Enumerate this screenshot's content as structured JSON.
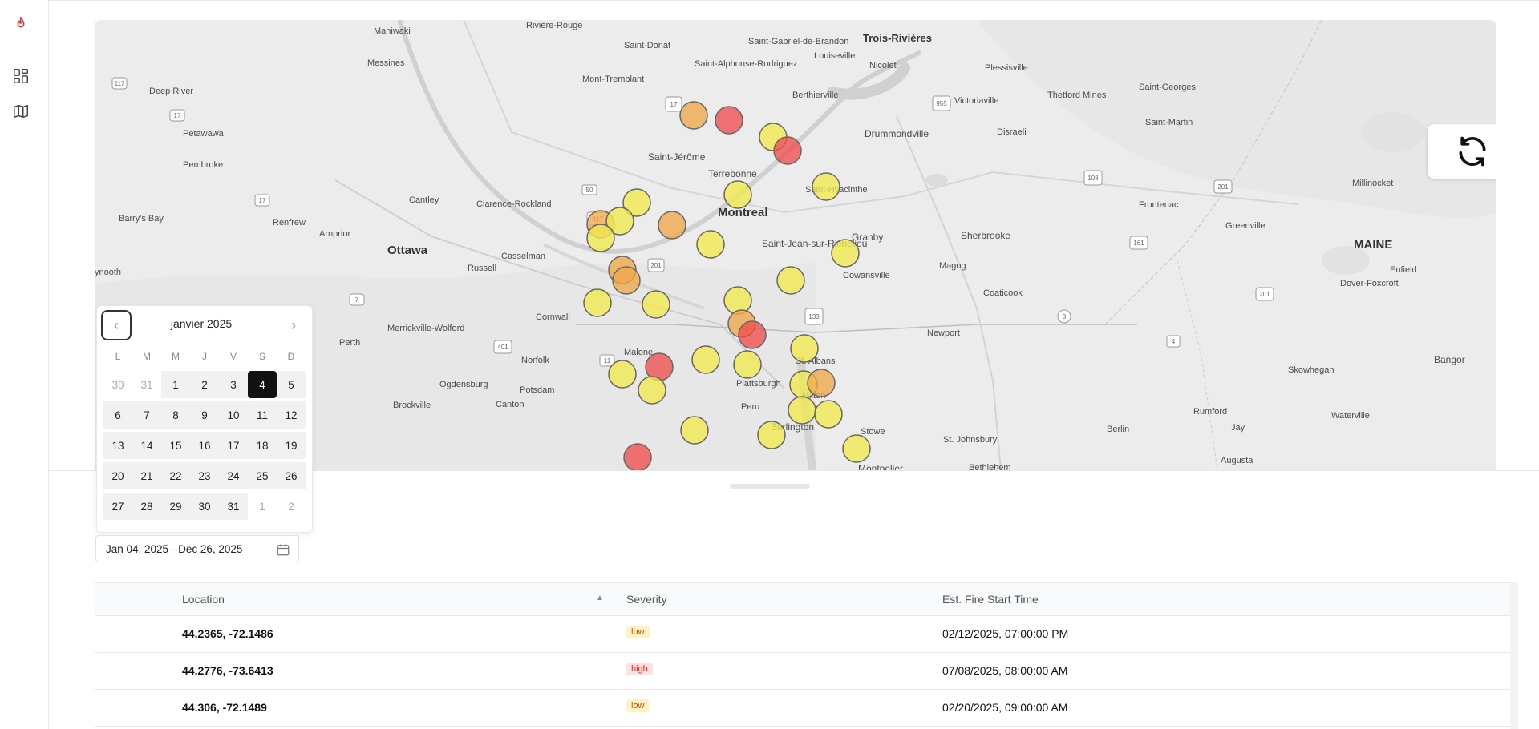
{
  "sidebar": {
    "items": [
      {
        "icon": "flame-icon"
      },
      {
        "icon": "dashboard-icon"
      },
      {
        "icon": "map-icon"
      }
    ]
  },
  "map": {
    "places": [
      {
        "label": "Rivière-Rouge"
      },
      {
        "label": "Saint-Donat"
      },
      {
        "label": "Saint-Gabriel-de-Brandon"
      },
      {
        "label": "Trois-Rivières"
      },
      {
        "label": "Maniwaki"
      },
      {
        "label": "Messines"
      },
      {
        "label": "Mont-Tremblant"
      },
      {
        "label": "Saint-Alphonse-Rodriguez"
      },
      {
        "label": "Louiseville"
      },
      {
        "label": "Nicolet"
      },
      {
        "label": "Plessisville"
      },
      {
        "label": "Deep River"
      },
      {
        "label": "Thetford Mines"
      },
      {
        "label": "Saint-Georges"
      },
      {
        "label": "Victoriaville"
      },
      {
        "label": "Berthierville"
      },
      {
        "label": "Petawawa"
      },
      {
        "label": "Drummondville"
      },
      {
        "label": "Disraeli"
      },
      {
        "label": "Saint-Martin"
      },
      {
        "label": "Pembroke"
      },
      {
        "label": "Saint-Jérôme"
      },
      {
        "label": "Terrebonne"
      },
      {
        "label": "Saint-Hyacinthe"
      },
      {
        "label": "Millinocket"
      },
      {
        "label": "Barry's Bay"
      },
      {
        "label": "Renfrew"
      },
      {
        "label": "Cantley"
      },
      {
        "label": "Clarence-Rockland"
      },
      {
        "label": "Montreal"
      },
      {
        "label": "Frontenac"
      },
      {
        "label": "Arnprior"
      },
      {
        "label": "Ottawa"
      },
      {
        "label": "Granby"
      },
      {
        "label": "Sherbrooke"
      },
      {
        "label": "Greenville"
      },
      {
        "label": "Saint-Jean-sur-Richelieu"
      },
      {
        "label": "Casselman"
      },
      {
        "label": "Russell"
      },
      {
        "label": "MAINE"
      },
      {
        "label": "Magog"
      },
      {
        "label": "Cowansville"
      },
      {
        "label": "Enfield"
      },
      {
        "label": "Coaticook"
      },
      {
        "label": "Dover-Foxcroft"
      },
      {
        "label": "Cornwall"
      },
      {
        "label": "Merrickville-Wolford"
      },
      {
        "label": "Perth"
      },
      {
        "label": "Newport"
      },
      {
        "label": "Malone"
      },
      {
        "label": "St. Albans"
      },
      {
        "label": "Bangor"
      },
      {
        "label": "Ogdensburg"
      },
      {
        "label": "Norfolk"
      },
      {
        "label": "Skowhegan"
      },
      {
        "label": "Plattsburgh"
      },
      {
        "label": "Brockville"
      },
      {
        "label": "Potsdam"
      },
      {
        "label": "Canton"
      },
      {
        "label": "Milton"
      },
      {
        "label": "Rumford"
      },
      {
        "label": "Waterville"
      },
      {
        "label": "Peru"
      },
      {
        "label": "Burlington"
      },
      {
        "label": "Stowe"
      },
      {
        "label": "St. Johnsbury"
      },
      {
        "label": "Berlin"
      },
      {
        "label": "Jay"
      },
      {
        "label": "Augusta"
      },
      {
        "label": "Montpelier"
      },
      {
        "label": "Bethlehem"
      },
      {
        "label": "ynooth"
      }
    ],
    "shields": [
      "117",
      "17",
      "17",
      "50",
      "417",
      "201",
      "7",
      "401",
      "11",
      "133",
      "3",
      "4",
      "201",
      "161",
      "201",
      "108",
      "201",
      "955"
    ],
    "colors": {
      "low": "#f2e94e",
      "medium": "#f0a84a",
      "high": "#ef4d4d"
    },
    "refresh_icon": "refresh-icon"
  },
  "calendar": {
    "month_label": "janvier 2025",
    "weekdays": [
      "L",
      "M",
      "M",
      "J",
      "V",
      "S",
      "D"
    ],
    "weeks": [
      [
        "30",
        "31",
        "1",
        "2",
        "3",
        "4",
        "5"
      ],
      [
        "6",
        "7",
        "8",
        "9",
        "10",
        "11",
        "12"
      ],
      [
        "13",
        "14",
        "15",
        "16",
        "17",
        "18",
        "19"
      ],
      [
        "20",
        "21",
        "22",
        "23",
        "24",
        "25",
        "26"
      ],
      [
        "27",
        "28",
        "29",
        "30",
        "31",
        "1",
        "2"
      ]
    ],
    "prev_icon": "chevron-left-icon",
    "next_icon": "chevron-right-icon"
  },
  "date_range": {
    "value": "Jan 04, 2025 - Dec 26, 2025",
    "icon": "calendar-icon"
  },
  "table": {
    "headers": {
      "location": "Location",
      "severity": "Severity",
      "start_time": "Est. Fire Start Time"
    },
    "rows": [
      {
        "location": "44.2365, -72.1486",
        "severity": "low",
        "start_time": "02/12/2025, 07:00:00 PM"
      },
      {
        "location": "44.2776, -73.6413",
        "severity": "high",
        "start_time": "07/08/2025, 08:00:00 AM"
      },
      {
        "location": "44.306, -72.1489",
        "severity": "low",
        "start_time": "02/20/2025, 09:00:00 AM"
      }
    ]
  }
}
